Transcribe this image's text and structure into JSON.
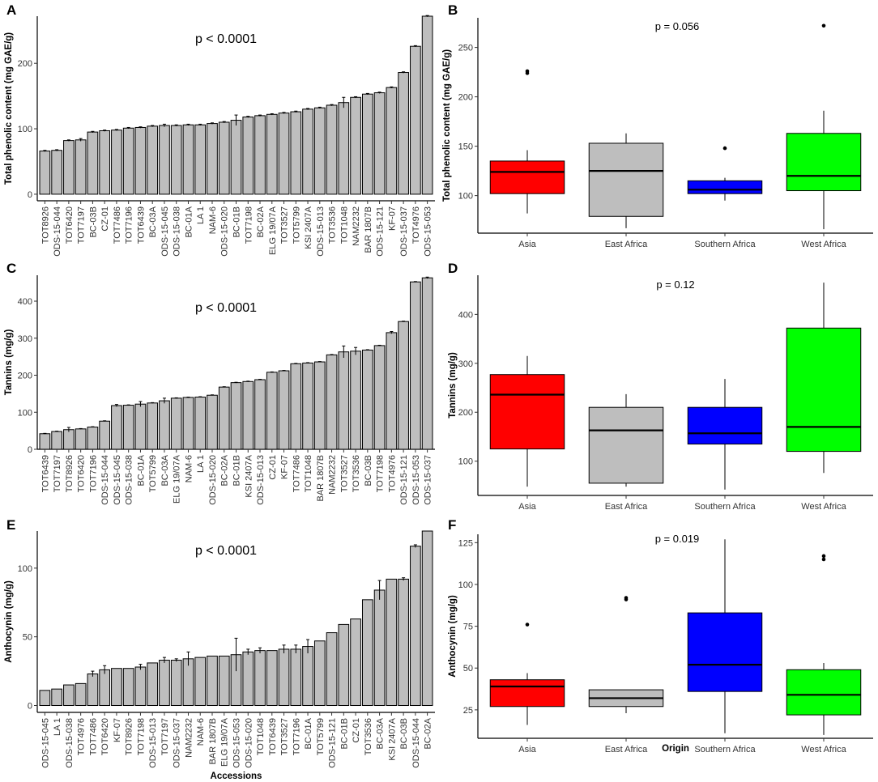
{
  "figure": {
    "background": "#ffffff",
    "bar_fill": "#bebebe"
  },
  "chart_data": [
    {
      "panel": "A",
      "type": "bar",
      "ylabel": "Total phenolic content (mg GAE/g)",
      "xlabel": "",
      "annotation": "p < 0.0001",
      "ylim": [
        -10,
        272
      ],
      "yticks": [
        0,
        100,
        200
      ],
      "categories": [
        "TOT8926",
        "ODS-15-044",
        "TOT6420",
        "TOT7197",
        "BC-03B",
        "CZ-01",
        "TOT7486",
        "TOT7196",
        "TOT6439",
        "BC-03A",
        "ODS-15-045",
        "ODS-15-038",
        "BC-01A",
        "LA 1",
        "NAM-6",
        "ODS-15-020",
        "BC-01B",
        "TOT7198",
        "BC-02A",
        "ELG 19/07A",
        "TOT3527",
        "TOT5799",
        "KSI 2407A",
        "ODS-15-013",
        "TOT3536",
        "TOT1048",
        "NAM2232",
        "BAR 1807B",
        "ODS-15-121",
        "KF-07",
        "ODS-15-037",
        "TOT4976",
        "ODS-15-053"
      ],
      "values": [
        66,
        67,
        82,
        83,
        95,
        97,
        98,
        101,
        102,
        104,
        105,
        105,
        106,
        106,
        108,
        110,
        113,
        118,
        120,
        122,
        124,
        126,
        130,
        132,
        136,
        140,
        148,
        153,
        155,
        163,
        186,
        226,
        272
      ],
      "errors": [
        1,
        1,
        1,
        2,
        1,
        1,
        1,
        1,
        1,
        1,
        2,
        1,
        1,
        1,
        1,
        1,
        8,
        1,
        1,
        1,
        1,
        1,
        1,
        1,
        1,
        8,
        1,
        1,
        1,
        1,
        1,
        1,
        1
      ]
    },
    {
      "panel": "B",
      "type": "box",
      "ylabel": "Total phenolic content (mg GAE/g)",
      "xlabel": "",
      "annotation": "p = 0.056",
      "ylim": [
        62,
        280
      ],
      "yticks": [
        100,
        150,
        200,
        250
      ],
      "groups": [
        {
          "name": "Asia",
          "color": "#ff0000",
          "q1": 102,
          "median": 124,
          "q3": 135,
          "lower": 82,
          "upper": 146,
          "outliers": [
            224,
            226
          ]
        },
        {
          "name": "East Africa",
          "color": "#bebebe",
          "q1": 79,
          "median": 125,
          "q3": 153,
          "lower": 67,
          "upper": 163,
          "outliers": []
        },
        {
          "name": "Southern Africa",
          "color": "#0000ff",
          "q1": 102,
          "median": 106,
          "q3": 115,
          "lower": 95,
          "upper": 118,
          "outliers": [
            148
          ]
        },
        {
          "name": "West Africa",
          "color": "#00ff00",
          "q1": 105,
          "median": 120,
          "q3": 163,
          "lower": 66,
          "upper": 186,
          "outliers": [
            272
          ]
        }
      ]
    },
    {
      "panel": "C",
      "type": "bar",
      "ylabel": "Tannins (mg/g)",
      "xlabel": "",
      "annotation": "p < 0.0001",
      "ylim": [
        0,
        470
      ],
      "yticks": [
        0,
        100,
        200,
        300,
        400
      ],
      "categories": [
        "TOT6439",
        "TOT7197",
        "TOT8926",
        "TOT6420",
        "TOT7196",
        "ODS-15-044",
        "ODS-15-045",
        "ODS-15-038",
        "BC-01A",
        "TOT5799",
        "BC-03A",
        "ELG 19/07A",
        "NAM-6",
        "LA 1",
        "ODS-15-020",
        "BC-02A",
        "BC-01B",
        "KSI 2407A",
        "ODS-15-013",
        "CZ-01",
        "KF-07",
        "TOT7486",
        "TOT1048",
        "BAR 1807B",
        "NAM2232",
        "TOT3527",
        "TOT3536",
        "BC-03B",
        "TOT7198",
        "TOT4976",
        "ODS-15-121",
        "ODS-15-053",
        "ODS-15-037"
      ],
      "values": [
        42,
        48,
        53,
        55,
        60,
        76,
        118,
        119,
        122,
        125,
        131,
        138,
        140,
        141,
        146,
        168,
        180,
        183,
        188,
        208,
        212,
        231,
        233,
        236,
        255,
        263,
        265,
        268,
        280,
        315,
        345,
        452,
        463
      ],
      "errors": [
        1,
        1,
        6,
        1,
        1,
        1,
        3,
        1,
        7,
        1,
        7,
        1,
        1,
        1,
        1,
        1,
        1,
        1,
        1,
        1,
        1,
        1,
        1,
        1,
        1,
        16,
        10,
        1,
        1,
        3,
        1,
        1,
        2
      ]
    },
    {
      "panel": "D",
      "type": "box",
      "ylabel": "Tannins (mg/g)",
      "xlabel": "",
      "annotation": "p = 0.12",
      "ylim": [
        30,
        480
      ],
      "yticks": [
        100,
        200,
        300,
        400
      ],
      "groups": [
        {
          "name": "Asia",
          "color": "#ff0000",
          "q1": 125,
          "median": 236,
          "q3": 277,
          "lower": 48,
          "upper": 315,
          "outliers": []
        },
        {
          "name": "East Africa",
          "color": "#bebebe",
          "q1": 55,
          "median": 163,
          "q3": 210,
          "lower": 48,
          "upper": 237,
          "outliers": []
        },
        {
          "name": "Southern Africa",
          "color": "#0000ff",
          "q1": 135,
          "median": 157,
          "q3": 210,
          "lower": 42,
          "upper": 268,
          "outliers": []
        },
        {
          "name": "West Africa",
          "color": "#00ff00",
          "q1": 120,
          "median": 170,
          "q3": 372,
          "lower": 76,
          "upper": 465,
          "outliers": []
        }
      ]
    },
    {
      "panel": "E",
      "type": "bar",
      "ylabel": "Anthocynin (mg/g)",
      "xlabel": "Accessions",
      "annotation": "p < 0.0001",
      "ylim": [
        -5,
        127
      ],
      "yticks": [
        0,
        50,
        100
      ],
      "categories": [
        "ODS-15-045",
        "LA 1",
        "ODS-15-038",
        "TOT4976",
        "TOT7486",
        "TOT6420",
        "KF-07",
        "TOT8926",
        "TOT7198",
        "ODS-15-013",
        "TOT7197",
        "ODS-15-037",
        "NAM2232",
        "NAM-6",
        "BAR 1807B",
        "ELG 19/07A",
        "ODS-15-053",
        "ODS-15-020",
        "TOT1048",
        "TOT6439",
        "TOT3527",
        "TOT7196",
        "BC-01A",
        "TOT5799",
        "ODS-15-121",
        "BC-01B",
        "CZ-01",
        "TOT3536",
        "BC-03A",
        "KSI 2407A",
        "BC-03B",
        "ODS-15-044",
        "BC-02A"
      ],
      "values": [
        11,
        12,
        15,
        16,
        23,
        26,
        27,
        27,
        28,
        31,
        33,
        33,
        34,
        35,
        36,
        36,
        37,
        39,
        40,
        40,
        41,
        41,
        43,
        47,
        53,
        59,
        63,
        77,
        84,
        92,
        92,
        116,
        127
      ],
      "errors": [
        0.5,
        0.5,
        0.5,
        0.5,
        2,
        3,
        0.5,
        0.5,
        2,
        0.5,
        2,
        1,
        5,
        0.5,
        0.5,
        0.5,
        12,
        2,
        2,
        0.5,
        3,
        3,
        5,
        0.5,
        0.5,
        0.5,
        0.5,
        0.5,
        7,
        0.5,
        1,
        1,
        0.5
      ]
    },
    {
      "panel": "F",
      "type": "box",
      "ylabel": "Anthocynin (mg/g)",
      "xlabel": "Origin",
      "annotation": "p = 0.019",
      "ylim": [
        8,
        130
      ],
      "yticks": [
        25,
        50,
        75,
        100,
        125
      ],
      "groups": [
        {
          "name": "Asia",
          "color": "#ff0000",
          "q1": 27,
          "median": 39,
          "q3": 43,
          "lower": 16,
          "upper": 47,
          "outliers": [
            76
          ]
        },
        {
          "name": "East Africa",
          "color": "#bebebe",
          "q1": 27,
          "median": 32,
          "q3": 37,
          "lower": 23,
          "upper": 37,
          "outliers": [
            91,
            92
          ]
        },
        {
          "name": "Southern Africa",
          "color": "#0000ff",
          "q1": 36,
          "median": 52,
          "q3": 83,
          "lower": 11,
          "upper": 127,
          "outliers": []
        },
        {
          "name": "West Africa",
          "color": "#00ff00",
          "q1": 22,
          "median": 34,
          "q3": 49,
          "lower": 10,
          "upper": 53,
          "outliers": [
            115,
            117
          ]
        }
      ]
    }
  ]
}
